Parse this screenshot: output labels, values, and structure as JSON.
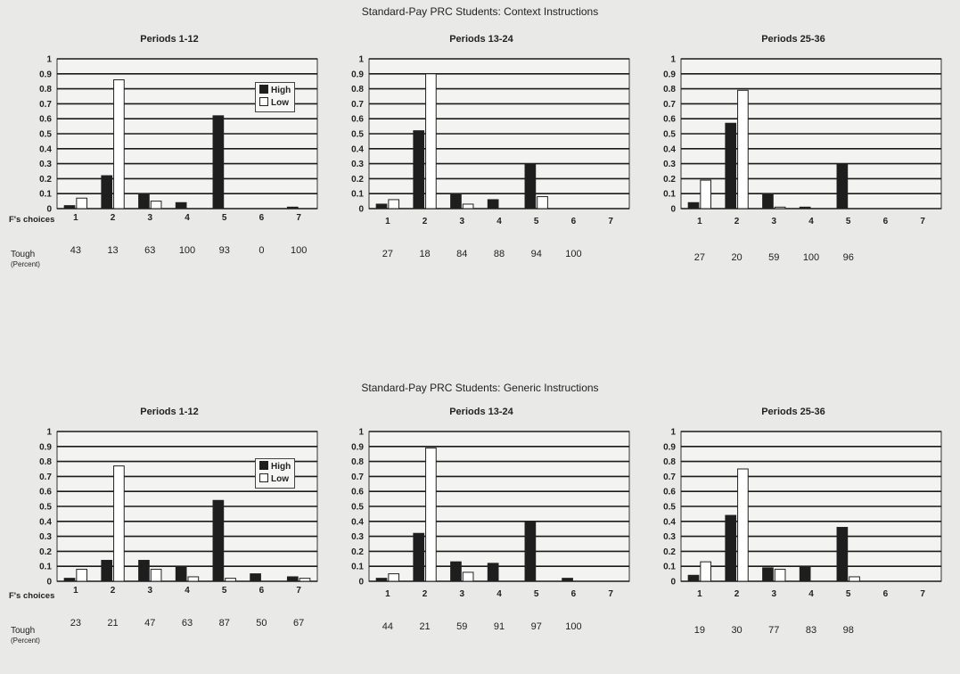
{
  "groups": [
    {
      "title": "Standard-Pay PRC Students:  Context Instructions",
      "row_label": "F's choices",
      "tough_label": "Tough",
      "tough_sub": "(Percent)",
      "panels": [
        {
          "title": "Periods 1-12",
          "tough": [
            "43",
            "13",
            "63",
            "100",
            "93",
            "0",
            "100"
          ]
        },
        {
          "title": "Periods 13-24",
          "tough": [
            "27",
            "18",
            "84",
            "88",
            "94",
            "100",
            ""
          ]
        },
        {
          "title": "Periods 25-36",
          "tough": [
            "27",
            "20",
            "59",
            "100",
            "96",
            "",
            ""
          ]
        }
      ]
    },
    {
      "title": "Standard-Pay PRC Students:  Generic Instructions",
      "row_label": "F's choices",
      "tough_label": "Tough",
      "tough_sub": "(Percent)",
      "panels": [
        {
          "title": "Periods 1-12",
          "tough": [
            "23",
            "21",
            "47",
            "63",
            "87",
            "50",
            "67"
          ]
        },
        {
          "title": "Periods 13-24",
          "tough": [
            "44",
            "21",
            "59",
            "91",
            "97",
            "100",
            ""
          ]
        },
        {
          "title": "Periods 25-36",
          "tough": [
            "19",
            "30",
            "77",
            "83",
            "98",
            "",
            ""
          ]
        }
      ]
    }
  ],
  "legend": {
    "high": "High",
    "low": "Low"
  },
  "colors": {
    "high": "#1e1e1e",
    "low": "#ffffff",
    "grid": "#1a1a1a"
  },
  "chart_data": [
    {
      "type": "bar",
      "title": "Periods 1-12",
      "categories": [
        "1",
        "2",
        "3",
        "4",
        "5",
        "6",
        "7"
      ],
      "ylim": [
        0,
        1
      ],
      "yticks": [
        0,
        0.1,
        0.2,
        0.3,
        0.4,
        0.5,
        0.6,
        0.7,
        0.8,
        0.9,
        1
      ],
      "legend": "top-right",
      "series": [
        {
          "name": "High",
          "values": [
            0.02,
            0.22,
            0.1,
            0.04,
            0.62,
            0,
            0.01
          ]
        },
        {
          "name": "Low",
          "values": [
            0.07,
            0.86,
            0.05,
            0,
            0,
            0,
            0
          ]
        }
      ]
    },
    {
      "type": "bar",
      "title": "Periods 13-24",
      "categories": [
        "1",
        "2",
        "3",
        "4",
        "5",
        "6",
        "7"
      ],
      "ylim": [
        0,
        1
      ],
      "yticks": [
        0,
        0.1,
        0.2,
        0.3,
        0.4,
        0.5,
        0.6,
        0.7,
        0.8,
        0.9,
        1
      ],
      "series": [
        {
          "name": "High",
          "values": [
            0.03,
            0.52,
            0.1,
            0.06,
            0.3,
            0,
            0
          ]
        },
        {
          "name": "Low",
          "values": [
            0.06,
            0.9,
            0.03,
            0,
            0.08,
            0,
            0
          ]
        }
      ]
    },
    {
      "type": "bar",
      "title": "Periods 25-36",
      "categories": [
        "1",
        "2",
        "3",
        "4",
        "5",
        "6",
        "7"
      ],
      "ylim": [
        0,
        1
      ],
      "yticks": [
        0,
        0.1,
        0.2,
        0.3,
        0.4,
        0.5,
        0.6,
        0.7,
        0.8,
        0.9,
        1
      ],
      "series": [
        {
          "name": "High",
          "values": [
            0.04,
            0.57,
            0.1,
            0.01,
            0.3,
            0,
            0
          ]
        },
        {
          "name": "Low",
          "values": [
            0.19,
            0.79,
            0.01,
            0,
            0,
            0,
            0
          ]
        }
      ]
    },
    {
      "type": "bar",
      "title": "Periods 1-12",
      "categories": [
        "1",
        "2",
        "3",
        "4",
        "5",
        "6",
        "7"
      ],
      "ylim": [
        0,
        1
      ],
      "yticks": [
        0,
        0.1,
        0.2,
        0.3,
        0.4,
        0.5,
        0.6,
        0.7,
        0.8,
        0.9,
        1
      ],
      "legend": "top-right",
      "series": [
        {
          "name": "High",
          "values": [
            0.02,
            0.14,
            0.14,
            0.1,
            0.54,
            0.05,
            0.03
          ]
        },
        {
          "name": "Low",
          "values": [
            0.08,
            0.77,
            0.08,
            0.03,
            0.02,
            0,
            0.02
          ]
        }
      ]
    },
    {
      "type": "bar",
      "title": "Periods 13-24",
      "categories": [
        "1",
        "2",
        "3",
        "4",
        "5",
        "6",
        "7"
      ],
      "ylim": [
        0,
        1
      ],
      "yticks": [
        0,
        0.1,
        0.2,
        0.3,
        0.4,
        0.5,
        0.6,
        0.7,
        0.8,
        0.9,
        1
      ],
      "series": [
        {
          "name": "High",
          "values": [
            0.02,
            0.32,
            0.13,
            0.12,
            0.4,
            0.02,
            0
          ]
        },
        {
          "name": "Low",
          "values": [
            0.05,
            0.89,
            0.06,
            0,
            0,
            0,
            0
          ]
        }
      ]
    },
    {
      "type": "bar",
      "title": "Periods 25-36",
      "categories": [
        "1",
        "2",
        "3",
        "4",
        "5",
        "6",
        "7"
      ],
      "ylim": [
        0,
        1
      ],
      "yticks": [
        0,
        0.1,
        0.2,
        0.3,
        0.4,
        0.5,
        0.6,
        0.7,
        0.8,
        0.9,
        1
      ],
      "series": [
        {
          "name": "High",
          "values": [
            0.04,
            0.44,
            0.09,
            0.1,
            0.36,
            0,
            0
          ]
        },
        {
          "name": "Low",
          "values": [
            0.13,
            0.75,
            0.08,
            0,
            0.03,
            0,
            0
          ]
        }
      ]
    }
  ]
}
